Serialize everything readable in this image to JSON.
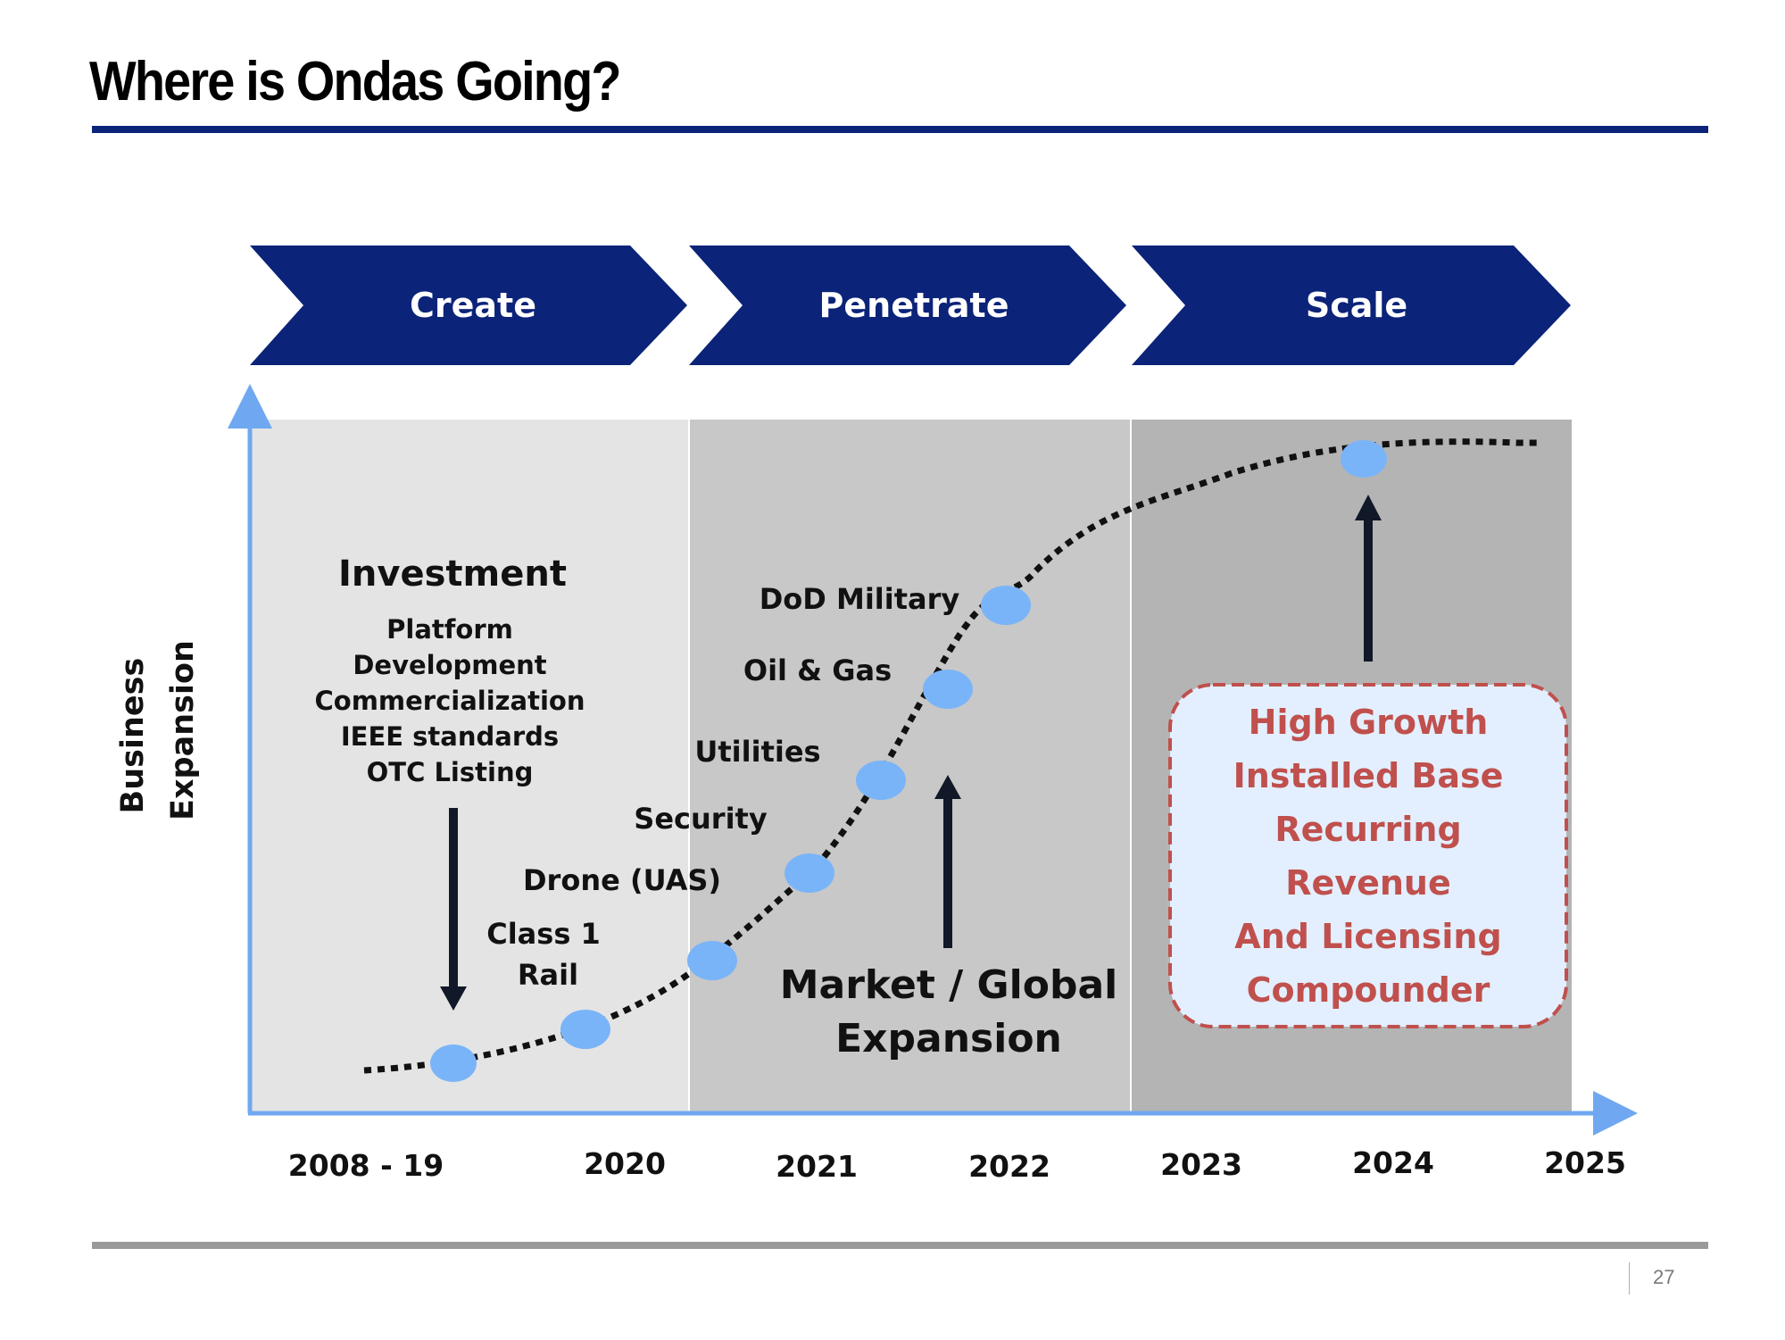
{
  "title": "Where is Ondas Going?",
  "page_number": "27",
  "phases": [
    "Create",
    "Penetrate",
    "Scale"
  ],
  "y_axis_label": [
    "Business",
    "Expansion"
  ],
  "investment": {
    "heading": "Investment",
    "items": [
      "Platform",
      "Development",
      "Commercialization",
      "IEEE standards",
      "OTC Listing"
    ]
  },
  "milestones": [
    "Class 1",
    "Rail",
    "Drone (UAS)",
    "Security",
    "Utilities",
    "Oil & Gas",
    "DoD Military"
  ],
  "market_expansion": [
    "Market / Global",
    "Expansion"
  ],
  "callout": [
    "High Growth",
    "Installed Base",
    "Recurring",
    "Revenue",
    "And Licensing",
    "Compounder"
  ],
  "years": [
    "2008 - 19",
    "2020",
    "2021",
    "2022",
    "2023",
    "2024",
    "2025"
  ],
  "colors": {
    "brand_navy": "#0b2378",
    "axis": "#6fa8f0",
    "milestone_dot": "#7ab4f8",
    "callout_red": "#c0504d",
    "callout_fill": "#e3efff"
  }
}
